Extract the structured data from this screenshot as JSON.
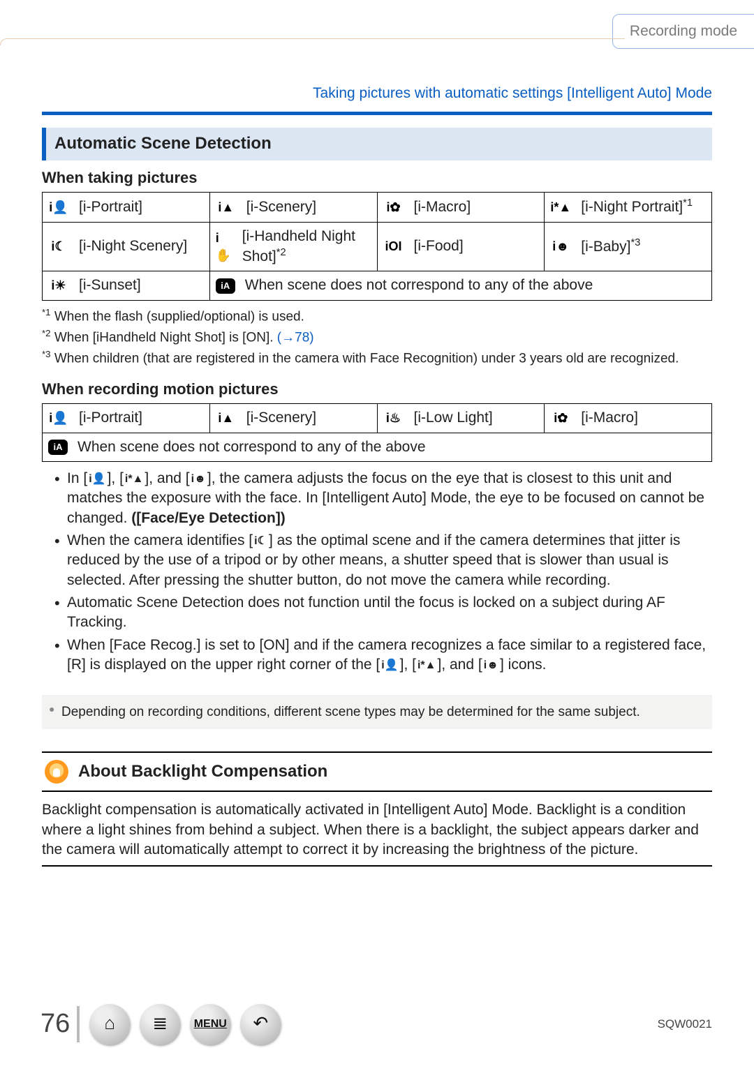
{
  "header": {
    "mode_tab": "Recording mode",
    "breadcrumb": "Taking pictures with automatic settings  [Intelligent Auto] Mode"
  },
  "section": {
    "title": "Automatic Scene Detection",
    "sub_pictures": "When taking pictures",
    "sub_motion": "When recording motion pictures"
  },
  "table_pictures": {
    "rows": [
      [
        {
          "icon": "i👤",
          "label": "[i-Portrait]"
        },
        {
          "icon": "i▲",
          "label": "[i-Scenery]"
        },
        {
          "icon": "i✿",
          "label": "[i-Macro]"
        },
        {
          "icon": "i*▲",
          "label": "[i-Night Portrait]",
          "suffix": "*1"
        }
      ],
      [
        {
          "icon": "i☾",
          "label": "[i-Night Scenery]"
        },
        {
          "icon": "i✋",
          "label": "[i-Handheld Night Shot]",
          "suffix": "*2"
        },
        {
          "icon": "iΟI",
          "label": "[i-Food]"
        },
        {
          "icon": "i☻",
          "label": "[i-Baby]",
          "suffix": "*3"
        }
      ],
      [
        {
          "icon": "i☀",
          "label": "[i-Sunset]"
        },
        {
          "icon": "iA",
          "label": "When scene does not correspond to any of the above",
          "span": 3,
          "ia": true
        }
      ]
    ]
  },
  "footnotes": {
    "n1_pre": "When the flash (supplied/optional) is used.",
    "n2_pre": "When [iHandheld Night Shot] is [ON]. ",
    "n2_link": "(→78)",
    "n3_pre": "When children (that are registered in the camera with Face Recognition) under 3 years old are recognized."
  },
  "table_motion": {
    "rows": [
      [
        {
          "icon": "i👤",
          "label": "[i-Portrait]"
        },
        {
          "icon": "i▲",
          "label": "[i-Scenery]"
        },
        {
          "icon": "i♨",
          "label": "[i-Low Light]"
        },
        {
          "icon": "i✿",
          "label": "[i-Macro]"
        }
      ],
      [
        {
          "icon": "iA",
          "label": "When scene does not correspond to any of the above",
          "span": 4,
          "ia": true
        }
      ]
    ]
  },
  "bullets": {
    "b1a": "In [",
    "b1b": "], [",
    "b1c": "], and [",
    "b1d": "], the camera adjusts the focus on the eye that is closest to this unit and matches the exposure with the face. In [Intelligent Auto] Mode, the eye to be focused on cannot be changed. ",
    "b1_bold": "([Face/Eye Detection])",
    "b2a": "When the camera identifies [",
    "b2b": "] as the optimal scene and if the camera determines that jitter is reduced by the use of a tripod or by other means, a shutter speed that is slower than usual is selected. After pressing the shutter button, do not move the camera while recording.",
    "b3": "Automatic Scene Detection does not function until the focus is locked on a subject during AF Tracking.",
    "b4a": "When [Face Recog.] is set to [ON] and if the camera recognizes a face similar to a registered face, [R] is displayed on the upper right corner of the [",
    "b4b": "], [",
    "b4c": "], and [",
    "b4d": "] icons."
  },
  "note": "Depending on recording conditions, different scene types may be determined for the same subject.",
  "backlight": {
    "title": "About Backlight Compensation",
    "para": "Backlight compensation is automatically activated in [Intelligent Auto] Mode. Backlight is a condition where a light shines from behind a subject. When there is a backlight, the subject appears darker and the camera will automatically attempt to correct it by increasing the brightness of the picture."
  },
  "footer": {
    "page": "76",
    "menu": "MENU",
    "doc_id": "SQW0021"
  },
  "colors": {
    "accent_blue": "#0a5ec2",
    "section_bg": "#dde7f4",
    "tab_border": "#98b3e8",
    "note_bg": "#f3f3f1"
  }
}
